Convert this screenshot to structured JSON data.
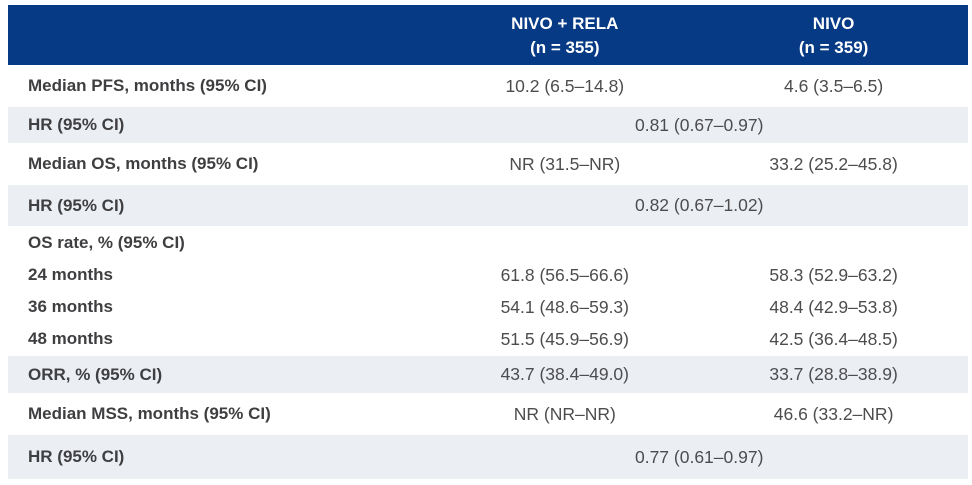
{
  "colors": {
    "header_bg": "#063A85",
    "header_text": "#FFFFFF",
    "alt_row_bg": "#EBEFF4",
    "label_text": "#3F3F41",
    "value_text": "#4D4D4F"
  },
  "header": {
    "columns": [
      {
        "name": "NIVO + RELA",
        "n": "(n = 355)"
      },
      {
        "name": "NIVO",
        "n": "(n = 359)"
      }
    ]
  },
  "table": {
    "rows": [
      {
        "label": "Median PFS, months (95% CI)",
        "values": [
          "10.2 (6.5–14.8)",
          "4.6 (3.5–6.5)"
        ]
      },
      {
        "label": "HR (95% CI)",
        "value": "0.81 (0.67–0.97)"
      },
      {
        "label": "Median OS, months (95% CI)",
        "values": [
          "NR (31.5–NR)",
          "33.2 (25.2–45.8)"
        ]
      },
      {
        "label": "HR (95% CI)",
        "value": "0.82 (0.67–1.02)"
      },
      {
        "label": "OS rate, % (95% CI)",
        "subrows": [
          {
            "label": "24 months",
            "values": [
              "61.8 (56.5–66.6)",
              "58.3 (52.9–63.2)"
            ]
          },
          {
            "label": "36 months",
            "values": [
              "54.1 (48.6–59.3)",
              "48.4 (42.9–53.8)"
            ]
          },
          {
            "label": "48 months",
            "values": [
              "51.5 (45.9–56.9)",
              "42.5 (36.4–48.5)"
            ]
          }
        ]
      },
      {
        "label": "ORR, % (95% CI)",
        "values": [
          "43.7 (38.4–49.0)",
          "33.7 (28.8–38.9)"
        ]
      },
      {
        "label": "Median MSS, months (95% CI)",
        "values": [
          "NR (NR–NR)",
          "46.6 (33.2–NR)"
        ]
      },
      {
        "label": "HR (95% CI)",
        "value": "0.77 (0.61–0.97)"
      }
    ]
  }
}
